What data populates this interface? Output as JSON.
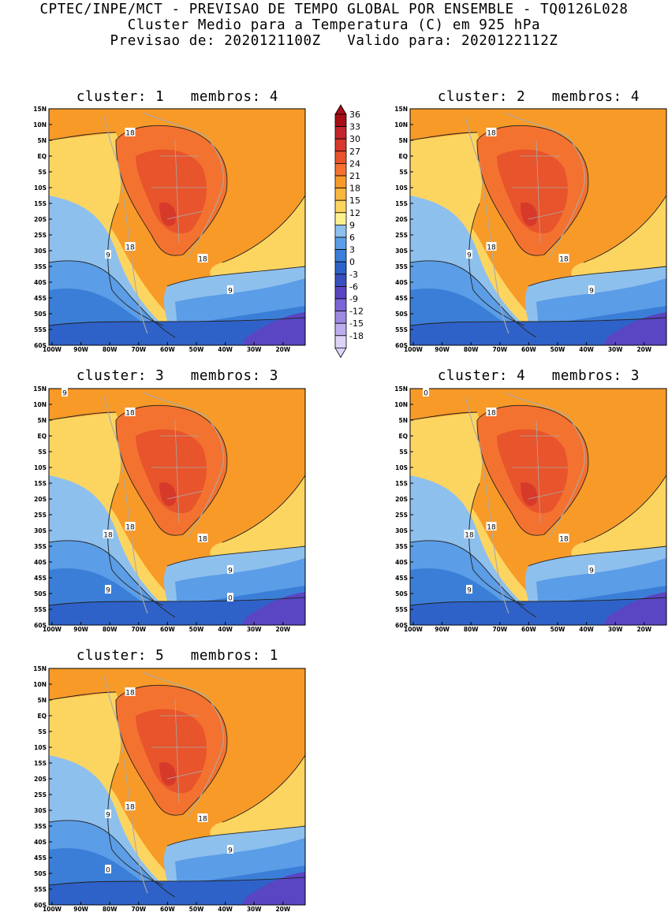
{
  "header": {
    "line1": "CPTEC/INPE/MCT - PREVISAO DE TEMPO GLOBAL POR ENSEMBLE - TQ0126L028",
    "line2": "Cluster Medio para a Temperatura (C) em 925 hPa",
    "line3": "Previsao de: 2020121100Z   Valido para: 2020122112Z"
  },
  "panels": [
    {
      "title": "cluster: 1   membros: 4",
      "labels": [
        "18",
        "18",
        "18",
        "9",
        "9"
      ]
    },
    {
      "title": "cluster: 2   membros: 4",
      "labels": [
        "18",
        "18",
        "18",
        "9",
        "9"
      ]
    },
    {
      "title": "cluster: 3   membros: 3",
      "labels": [
        "18",
        "18",
        "18",
        "18",
        "9",
        "9",
        "9",
        "0"
      ]
    },
    {
      "title": "cluster: 4   membros: 3",
      "labels": [
        "18",
        "18",
        "18",
        "18",
        "9",
        "9",
        "0"
      ]
    },
    {
      "title": "cluster: 5   membros: 1",
      "labels": [
        "18",
        "18",
        "18",
        "9",
        "9",
        "0"
      ]
    }
  ],
  "axes": {
    "lat_ticks": [
      "15N",
      "10N",
      "5N",
      "EQ",
      "5S",
      "10S",
      "15S",
      "20S",
      "25S",
      "30S",
      "35S",
      "40S",
      "45S",
      "50S",
      "55S",
      "60S"
    ],
    "lon_ticks": [
      "100W",
      "90W",
      "80W",
      "70W",
      "60W",
      "50W",
      "40W",
      "30W",
      "20W"
    ]
  },
  "colorbar": {
    "levels": [
      "36",
      "33",
      "30",
      "27",
      "24",
      "21",
      "18",
      "15",
      "12",
      "9",
      "6",
      "3",
      "0",
      "-3",
      "-6",
      "-9",
      "-12",
      "-15",
      "-18"
    ],
    "colors": [
      "#a50f15",
      "#c3272b",
      "#d7392a",
      "#e8542b",
      "#f47230",
      "#f89a28",
      "#f9b740",
      "#fcd561",
      "#fef090",
      "#8ec0ee",
      "#5b9de6",
      "#3b7ed8",
      "#2f62c8",
      "#3a4fbf",
      "#5a45c2",
      "#7c66d6",
      "#9c8ae3",
      "#bcaeee",
      "#dcd3f6"
    ]
  }
}
